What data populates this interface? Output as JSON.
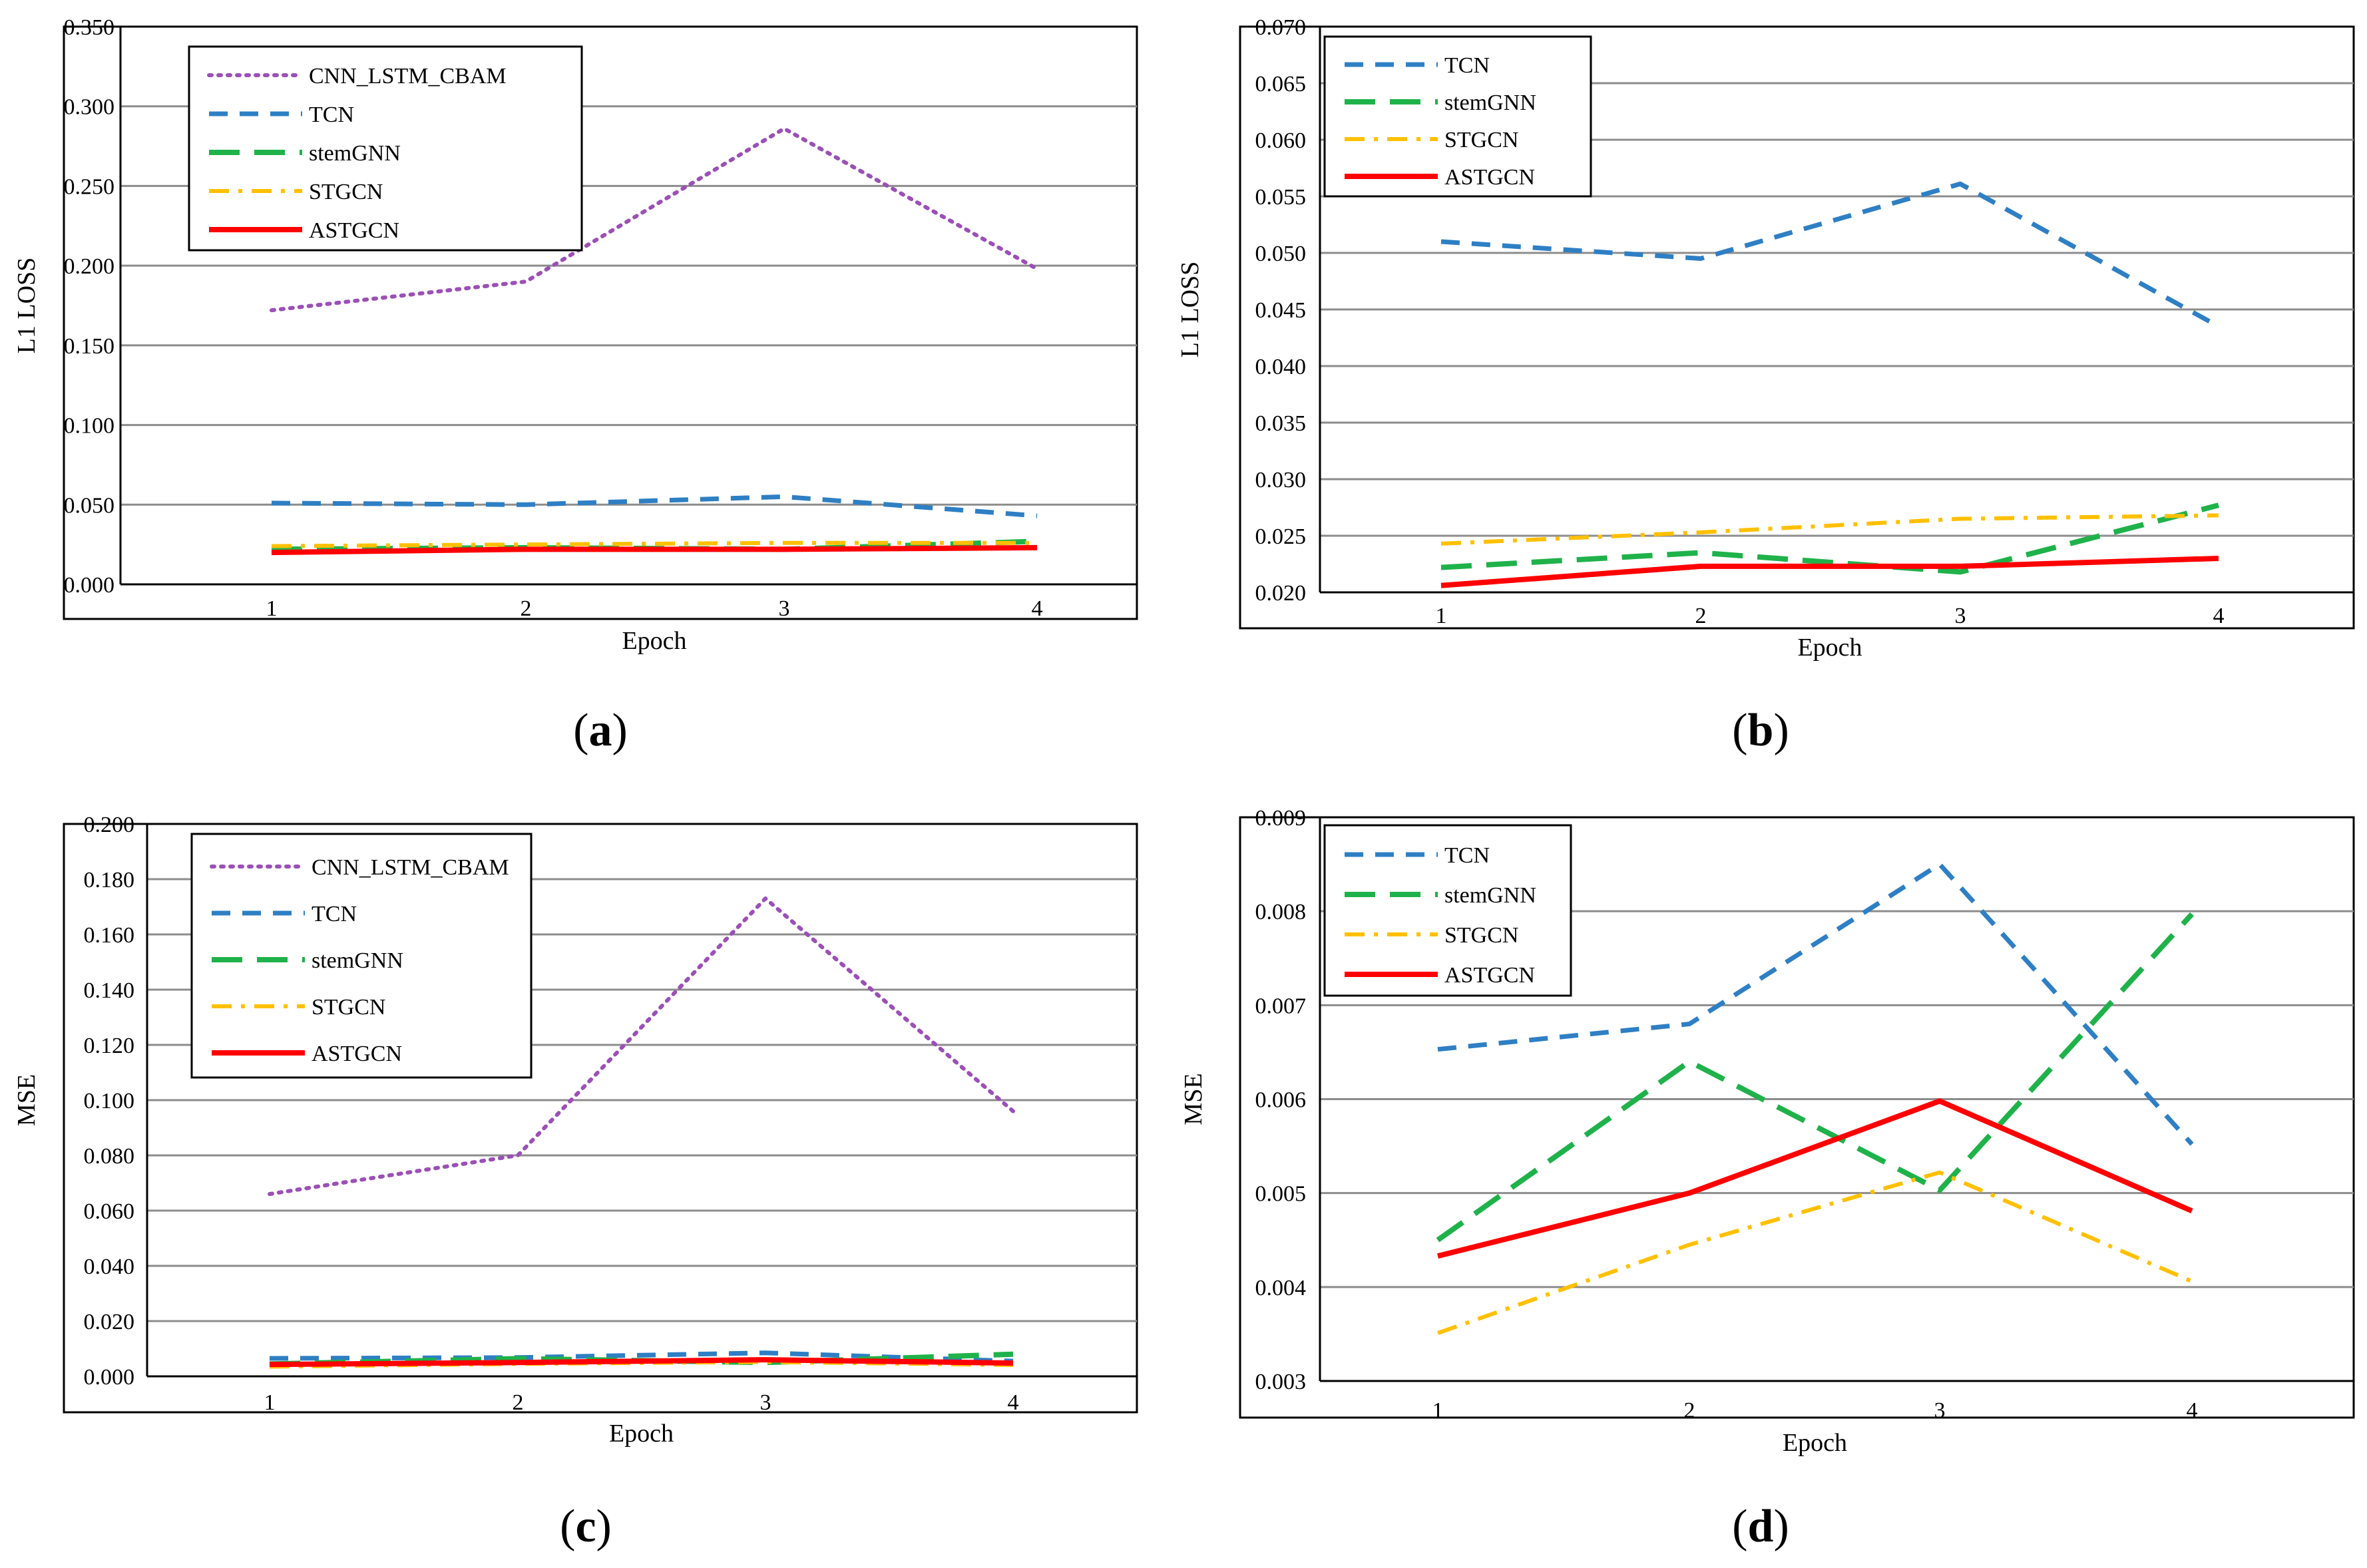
{
  "figure_captions": [
    "(a)",
    "(b)",
    "(c)",
    "(d)"
  ],
  "series_styles": {
    "CNN_LSTM_CBAM": {
      "color": "#9b4fb7",
      "dash": "dot"
    },
    "TCN": {
      "color": "#2e7fc4",
      "dash": "dash"
    },
    "stemGNN": {
      "color": "#1fb24a",
      "dash": "longdash"
    },
    "STGCN": {
      "color": "#ffc000",
      "dash": "dashdot"
    },
    "ASTGCN": {
      "color": "#ff0000",
      "dash": "solid"
    }
  },
  "chart_data": [
    {
      "type": "line",
      "panel": "a",
      "xlabel": "Epoch",
      "ylabel": "L1 LOSS",
      "x": [
        1,
        2,
        3,
        4
      ],
      "ylim": [
        0,
        0.35
      ],
      "yticks": [
        "0.000",
        "0.050",
        "0.100",
        "0.150",
        "0.200",
        "0.250",
        "0.300",
        "0.350"
      ],
      "series": [
        {
          "name": "CNN_LSTM_CBAM",
          "values": [
            0.172,
            0.19,
            0.286,
            0.198
          ]
        },
        {
          "name": "TCN",
          "values": [
            0.051,
            0.05,
            0.055,
            0.043
          ]
        },
        {
          "name": "stemGNN",
          "values": [
            0.022,
            0.023,
            0.022,
            0.027
          ]
        },
        {
          "name": "STGCN",
          "values": [
            0.024,
            0.025,
            0.026,
            0.026
          ]
        },
        {
          "name": "ASTGCN",
          "values": [
            0.02,
            0.022,
            0.022,
            0.023
          ]
        }
      ]
    },
    {
      "type": "line",
      "panel": "b",
      "xlabel": "Epoch",
      "ylabel": "L1 LOSS",
      "x": [
        1,
        2,
        3,
        4
      ],
      "ylim": [
        0.02,
        0.07
      ],
      "yticks": [
        "0.020",
        "0.025",
        "0.030",
        "0.035",
        "0.040",
        "0.045",
        "0.050",
        "0.055",
        "0.060",
        "0.065",
        "0.070"
      ],
      "series": [
        {
          "name": "TCN",
          "values": [
            0.051,
            0.0495,
            0.0561,
            0.0435
          ]
        },
        {
          "name": "stemGNN",
          "values": [
            0.0222,
            0.0235,
            0.0218,
            0.0277
          ]
        },
        {
          "name": "STGCN",
          "values": [
            0.0243,
            0.0253,
            0.0265,
            0.0268
          ]
        },
        {
          "name": "ASTGCN",
          "values": [
            0.0206,
            0.0223,
            0.0223,
            0.023
          ]
        }
      ]
    },
    {
      "type": "line",
      "panel": "c",
      "xlabel": "Epoch",
      "ylabel": "MSE",
      "x": [
        1,
        2,
        3,
        4
      ],
      "ylim": [
        0,
        0.2
      ],
      "yticks": [
        "0.000",
        "0.020",
        "0.040",
        "0.060",
        "0.080",
        "0.100",
        "0.120",
        "0.140",
        "0.160",
        "0.180",
        "0.200"
      ],
      "series": [
        {
          "name": "CNN_LSTM_CBAM",
          "values": [
            0.066,
            0.08,
            0.173,
            0.096
          ]
        },
        {
          "name": "TCN",
          "values": [
            0.0065,
            0.0068,
            0.0085,
            0.0055
          ]
        },
        {
          "name": "stemGNN",
          "values": [
            0.0045,
            0.0064,
            0.005,
            0.008
          ]
        },
        {
          "name": "STGCN",
          "values": [
            0.0035,
            0.0045,
            0.0052,
            0.0041
          ]
        },
        {
          "name": "ASTGCN",
          "values": [
            0.0043,
            0.005,
            0.006,
            0.0048
          ]
        }
      ]
    },
    {
      "type": "line",
      "panel": "d",
      "xlabel": "Epoch",
      "ylabel": "MSE",
      "x": [
        1,
        2,
        3,
        4
      ],
      "ylim": [
        0.003,
        0.009
      ],
      "yticks": [
        "0.003",
        "0.004",
        "0.005",
        "0.006",
        "0.007",
        "0.008",
        "0.009"
      ],
      "series": [
        {
          "name": "TCN",
          "values": [
            0.00653,
            0.0068,
            0.0085,
            0.00552
          ]
        },
        {
          "name": "stemGNN",
          "values": [
            0.0045,
            0.0064,
            0.00503,
            0.00797
          ]
        },
        {
          "name": "STGCN",
          "values": [
            0.00351,
            0.00445,
            0.00522,
            0.00406
          ]
        },
        {
          "name": "ASTGCN",
          "values": [
            0.00433,
            0.005,
            0.00598,
            0.00481
          ]
        }
      ]
    }
  ]
}
